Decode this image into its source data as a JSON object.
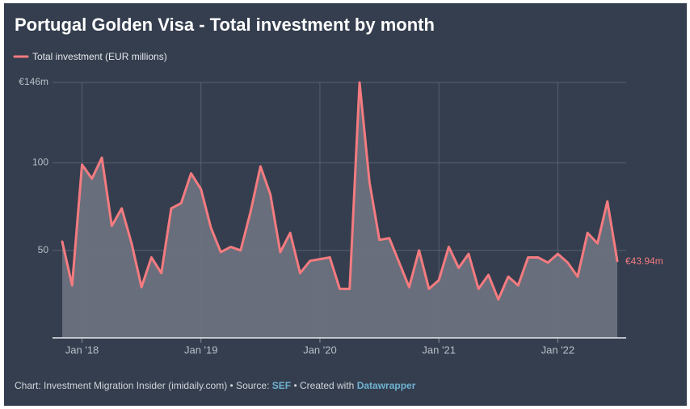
{
  "chart_data": {
    "type": "line",
    "title": "Portugal Golden Visa - Total investment by month",
    "x": [
      "2017-11",
      "2017-12",
      "2018-01",
      "2018-02",
      "2018-03",
      "2018-04",
      "2018-05",
      "2018-06",
      "2018-07",
      "2018-08",
      "2018-09",
      "2018-10",
      "2018-11",
      "2018-12",
      "2019-01",
      "2019-02",
      "2019-03",
      "2019-04",
      "2019-05",
      "2019-06",
      "2019-07",
      "2019-08",
      "2019-09",
      "2019-10",
      "2019-11",
      "2019-12",
      "2020-01",
      "2020-02",
      "2020-03",
      "2020-04",
      "2020-05",
      "2020-06",
      "2020-07",
      "2020-08",
      "2020-09",
      "2020-10",
      "2020-11",
      "2020-12",
      "2021-01",
      "2021-02",
      "2021-03",
      "2021-04",
      "2021-05",
      "2021-06",
      "2021-07",
      "2021-08",
      "2021-09",
      "2021-10",
      "2021-11",
      "2021-12",
      "2022-01",
      "2022-02",
      "2022-03",
      "2022-04",
      "2022-05",
      "2022-06",
      "2022-07"
    ],
    "series": [
      {
        "name": "Total investment (EUR millions)",
        "color": "#f47b80",
        "values": [
          55,
          30,
          99,
          91,
          103,
          64,
          74,
          54,
          29,
          46,
          37,
          74,
          77,
          94,
          85,
          63,
          49,
          52,
          50,
          72,
          98,
          82,
          49,
          60,
          37,
          44,
          45,
          46,
          28,
          28,
          146,
          89,
          56,
          57,
          43,
          29,
          50,
          28,
          33,
          52,
          40,
          48,
          28,
          36,
          22,
          35,
          30,
          46,
          46,
          43,
          48,
          43,
          35,
          60,
          54,
          78,
          43.94
        ],
        "value_labels": [
          null,
          null,
          null,
          null,
          null,
          null,
          null,
          null,
          null,
          null,
          null,
          null,
          null,
          null,
          null,
          null,
          null,
          null,
          null,
          null,
          null,
          null,
          null,
          null,
          null,
          null,
          null,
          null,
          null,
          null,
          null,
          null,
          null,
          null,
          null,
          null,
          null,
          null,
          null,
          null,
          null,
          null,
          null,
          null,
          null,
          null,
          null,
          null,
          null,
          null,
          null,
          null,
          null,
          null,
          null,
          null,
          "€43.94m"
        ]
      }
    ],
    "xlim": [
      "2017-11",
      "2022-07"
    ],
    "xticks": [
      {
        "value": "2018-01",
        "label": "Jan '18"
      },
      {
        "value": "2019-01",
        "label": "Jan '19"
      },
      {
        "value": "2020-01",
        "label": "Jan '20"
      },
      {
        "value": "2021-01",
        "label": "Jan '21"
      },
      {
        "value": "2022-01",
        "label": "Jan '22"
      }
    ],
    "ylim": [
      0,
      146
    ],
    "yticks": [
      50,
      100,
      {
        "value": 146,
        "label": "€146m"
      }
    ],
    "grid": true,
    "area": true,
    "footer": {
      "credit": "Chart: Investment Migration Insider (imidaily.com) • Source:",
      "source": "SEF",
      "created": "• Created with",
      "tool": "Datawrapper"
    }
  }
}
